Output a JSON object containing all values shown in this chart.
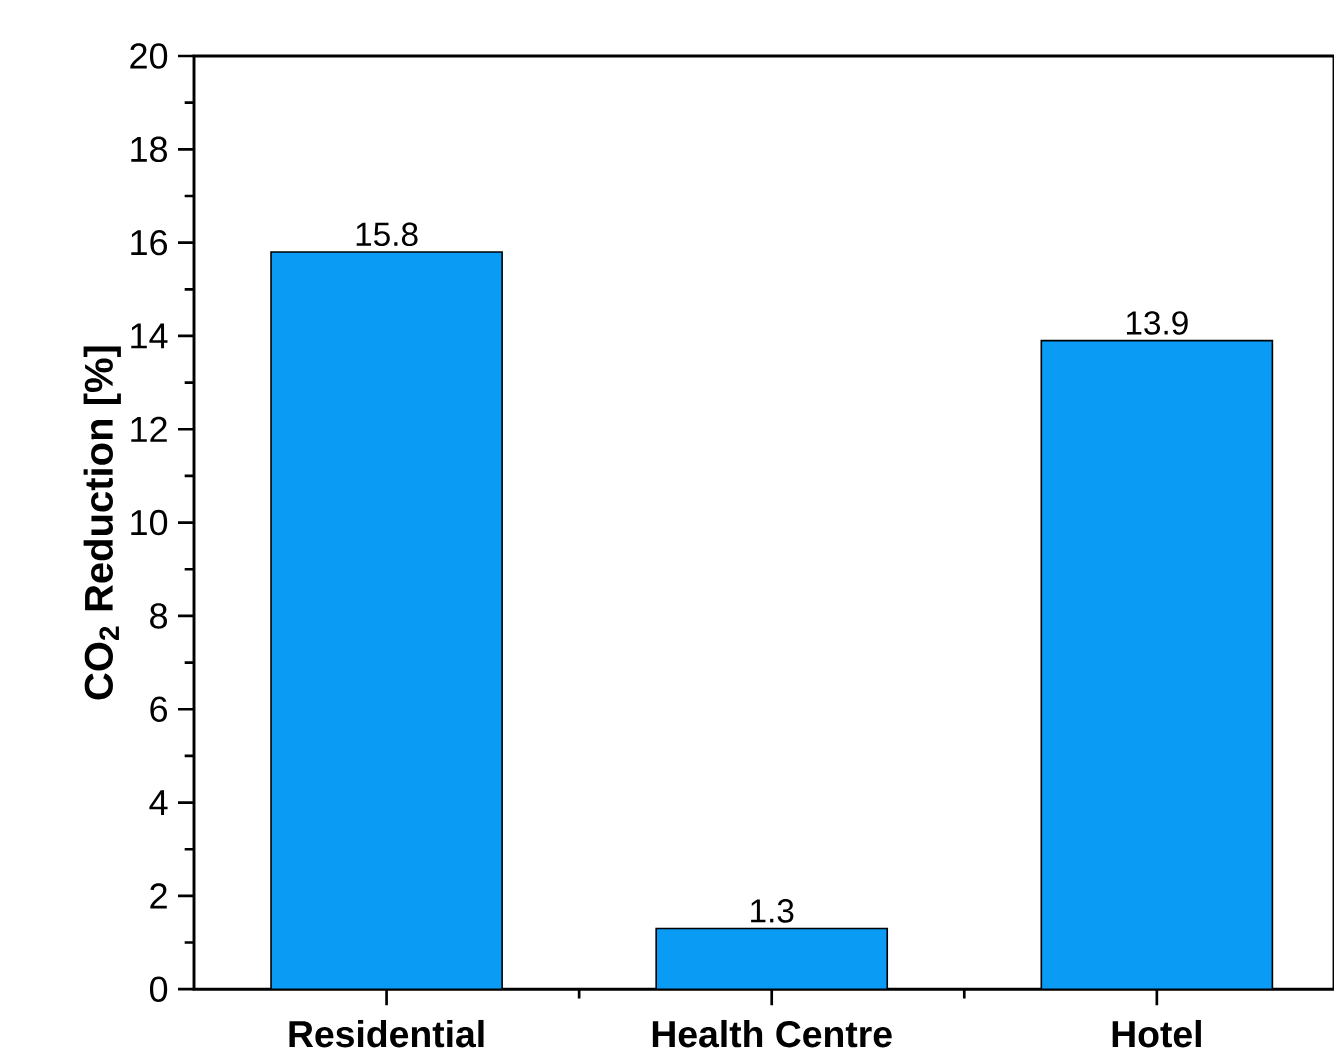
{
  "chart_data": {
    "type": "bar",
    "ylabel": "CO$_{2}$ Reduction [%]",
    "categories": [
      "Residential",
      "Health Centre",
      "Hotel"
    ],
    "values": [
      15.8,
      1.3,
      13.9
    ],
    "color": "#0a9bf5",
    "ylim": [
      0,
      20
    ],
    "yticks": [
      0,
      2,
      4,
      6,
      8,
      10,
      12,
      14,
      16,
      18,
      20
    ],
    "data_labels": true
  }
}
